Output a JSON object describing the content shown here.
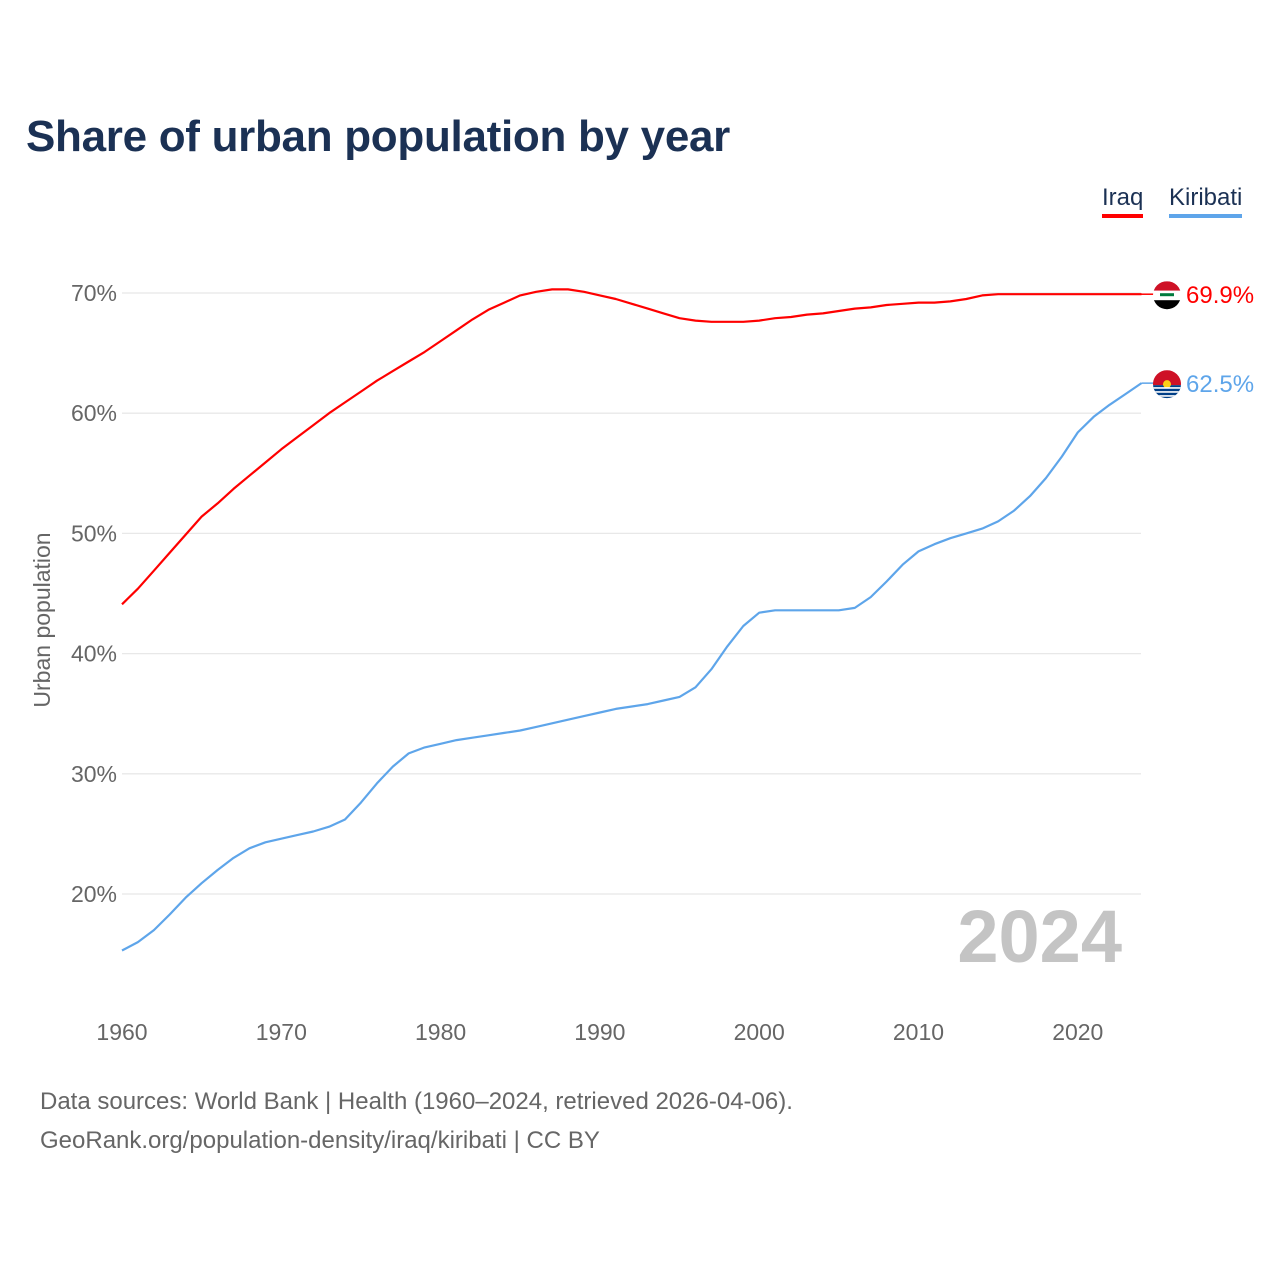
{
  "chart_data": {
    "type": "line",
    "title": "Share of urban population by year",
    "xlabel": "",
    "ylabel": "Urban population",
    "xlim": [
      1960,
      2024
    ],
    "ylim": [
      13,
      73
    ],
    "x_ticks": [
      1960,
      1970,
      1980,
      1990,
      2000,
      2010,
      2020
    ],
    "x_tick_labels": [
      "1960",
      "1970",
      "1980",
      "1990",
      "2000",
      "2010",
      "2020"
    ],
    "y_ticks": [
      20,
      30,
      40,
      50,
      60,
      70
    ],
    "y_tick_labels": [
      "20%",
      "30%",
      "40%",
      "50%",
      "60%",
      "70%"
    ],
    "grid": true,
    "legend_placement": "top-right",
    "year_label": "2024",
    "x": [
      1960,
      1961,
      1962,
      1963,
      1964,
      1965,
      1966,
      1967,
      1968,
      1969,
      1970,
      1971,
      1972,
      1973,
      1974,
      1975,
      1976,
      1977,
      1978,
      1979,
      1980,
      1981,
      1982,
      1983,
      1984,
      1985,
      1986,
      1987,
      1988,
      1989,
      1990,
      1991,
      1992,
      1993,
      1994,
      1995,
      1996,
      1997,
      1998,
      1999,
      2000,
      2001,
      2002,
      2003,
      2004,
      2005,
      2006,
      2007,
      2008,
      2009,
      2010,
      2011,
      2012,
      2013,
      2014,
      2015,
      2016,
      2017,
      2018,
      2019,
      2020,
      2021,
      2022,
      2023,
      2024
    ],
    "series": [
      {
        "name": "Iraq",
        "color": "#ff0000",
        "end_label": "69.9%",
        "flag": "iraq-flag",
        "values": [
          44.1,
          45.4,
          46.9,
          48.4,
          49.9,
          51.4,
          52.5,
          53.7,
          54.8,
          55.9,
          57.0,
          58.0,
          59.0,
          60.0,
          60.9,
          61.8,
          62.7,
          63.5,
          64.3,
          65.1,
          66.0,
          66.9,
          67.8,
          68.6,
          69.2,
          69.8,
          70.1,
          70.3,
          70.3,
          70.1,
          69.8,
          69.5,
          69.1,
          68.7,
          68.3,
          67.9,
          67.7,
          67.6,
          67.6,
          67.6,
          67.7,
          67.9,
          68.0,
          68.2,
          68.3,
          68.5,
          68.7,
          68.8,
          69.0,
          69.1,
          69.2,
          69.2,
          69.3,
          69.5,
          69.8,
          69.9,
          69.9,
          69.9,
          69.9,
          69.9,
          69.9,
          69.9,
          69.9,
          69.9,
          69.9
        ]
      },
      {
        "name": "Kiribati",
        "color": "#5ea5ea",
        "end_label": "62.5%",
        "flag": "kiribati-flag",
        "values": [
          15.3,
          16.0,
          17.0,
          18.3,
          19.7,
          20.9,
          22.0,
          23.0,
          23.8,
          24.3,
          24.6,
          24.9,
          25.2,
          25.6,
          26.2,
          27.6,
          29.2,
          30.6,
          31.7,
          32.2,
          32.5,
          32.8,
          33.0,
          33.2,
          33.4,
          33.6,
          33.9,
          34.2,
          34.5,
          34.8,
          35.1,
          35.4,
          35.6,
          35.8,
          36.1,
          36.4,
          37.2,
          38.7,
          40.6,
          42.3,
          43.4,
          43.6,
          43.6,
          43.6,
          43.6,
          43.6,
          43.8,
          44.7,
          46.0,
          47.4,
          48.5,
          49.1,
          49.6,
          50.0,
          50.4,
          51.0,
          51.9,
          53.1,
          54.6,
          56.4,
          58.4,
          59.7,
          60.7,
          61.6,
          62.5
        ]
      }
    ]
  },
  "footer": {
    "line1": "Data sources: World Bank | Health (1960–2024, retrieved 2026-04-06).",
    "line2": "GeoRank.org/population-density/iraq/kiribati | CC BY"
  }
}
